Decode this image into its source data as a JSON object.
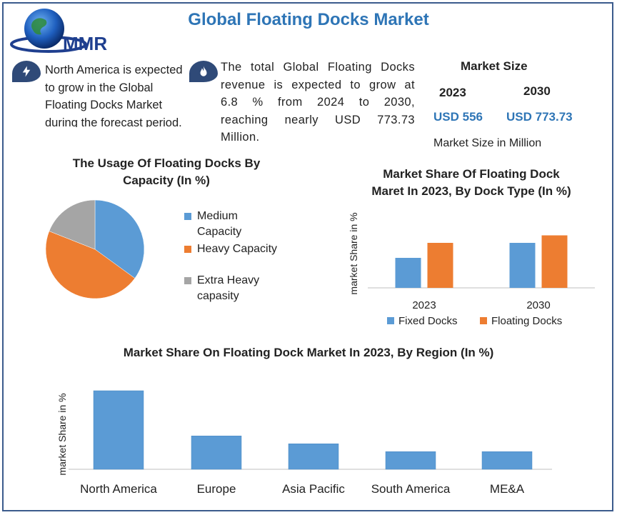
{
  "header": {
    "logo_text": "MMR",
    "title": "Global Floating Docks Market"
  },
  "highlights": {
    "north_america": "North America is expected to grow in the Global Floating Docks Market during the forecast period.",
    "revenue_lines": [
      "The total Global Floating Docks",
      "revenue is expected to grow at",
      "6.8 % from 2024 to 2030,",
      "reaching nearly USD 773.73",
      "Million."
    ]
  },
  "market_size": {
    "heading": "Market Size",
    "years": [
      "2023",
      "2030"
    ],
    "values": [
      "USD 556",
      "USD 773.73"
    ],
    "note": "Market Size in Million"
  },
  "colors": {
    "blue": "#5b9bd5",
    "orange": "#ed7d31",
    "gray": "#a5a5a5",
    "accent": "#2e75b6",
    "icon": "#2f4a78"
  },
  "chart_data": [
    {
      "type": "pie",
      "title_lines": [
        "The Usage Of Floating Docks By",
        "Capacity (In %)"
      ],
      "labels": [
        "Medium Capacity",
        "Heavy Capacity",
        "Extra Heavy capasity"
      ],
      "legend_lines": [
        [
          "Medium",
          "Capacity"
        ],
        [
          "Heavy Capacity"
        ],
        [
          "Extra Heavy",
          "capasity"
        ]
      ],
      "values": [
        35,
        46,
        19
      ],
      "legend_position": "right"
    },
    {
      "type": "bar",
      "title_lines": [
        "Market Share Of Floating Dock",
        "Maret In 2023, By Dock Type (In %)"
      ],
      "categories": [
        "2023",
        "2030"
      ],
      "series": [
        {
          "name": "Fixed Docks",
          "values": [
            40,
            60
          ]
        },
        {
          "name": "Floating Docks",
          "values": [
            60,
            70
          ]
        }
      ],
      "ylabel": "market Share in %",
      "ylim": [
        0,
        100
      ],
      "legend_position": "bottom",
      "grid": false
    },
    {
      "type": "bar",
      "title": "Market Share On Floating Dock Market In 2023, By Region (In %)",
      "categories": [
        "North America",
        "Europe",
        "Asia Pacific",
        "South America",
        "ME&A"
      ],
      "values": [
        40,
        17,
        13,
        9,
        9
      ],
      "ylabel": "market Share in %",
      "ylim": [
        0,
        40
      ],
      "grid": false
    }
  ]
}
